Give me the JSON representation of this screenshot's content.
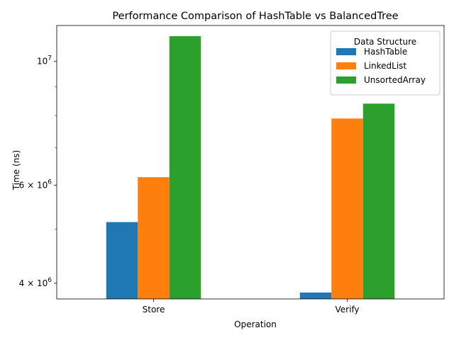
{
  "chart_data": {
    "type": "bar",
    "title": "Performance Comparison of HashTable vs BalancedTree",
    "xlabel": "Operation",
    "ylabel": "Time (ns)",
    "yscale": "log",
    "ylim": [
      3750000,
      11600000
    ],
    "categories": [
      "Store",
      "Verify"
    ],
    "series": [
      {
        "name": "HashTable",
        "color": "#1f77b4",
        "values": [
          5150000,
          3850000
        ]
      },
      {
        "name": "LinkedList",
        "color": "#ff7f0e",
        "values": [
          6200000,
          7900000
        ]
      },
      {
        "name": "UnsortedArray",
        "color": "#2ca02c",
        "values": [
          11100000,
          8400000
        ]
      }
    ],
    "yticks_major": [
      {
        "value": 4000000,
        "mantissa": "4",
        "base": "10",
        "exp": "6"
      },
      {
        "value": 6000000,
        "mantissa": "6",
        "base": "10",
        "exp": "6"
      },
      {
        "value": 10000000,
        "mantissa": "",
        "base": "10",
        "exp": "7"
      }
    ],
    "yticks_minor": [
      3750000,
      5000000,
      7000000,
      8000000,
      9000000
    ],
    "legend": {
      "title": "Data Structure",
      "position": "upper-right"
    },
    "grid": false
  }
}
